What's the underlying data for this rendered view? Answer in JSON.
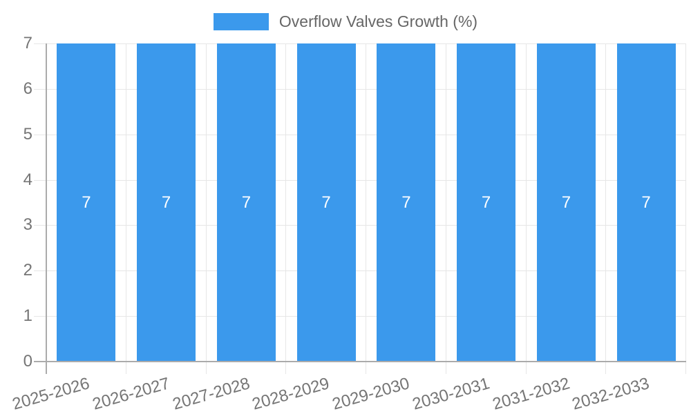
{
  "chart_data": {
    "type": "bar",
    "title": "Overflow Valves Growth (%)",
    "categories": [
      "2025-2026",
      "2026-2027",
      "2027-2028",
      "2028-2029",
      "2029-2030",
      "2030-2031",
      "2031-2032",
      "2032-2033"
    ],
    "series": [
      {
        "name": "Overflow Valves Growth (%)",
        "values": [
          7,
          7,
          7,
          7,
          7,
          7,
          7,
          7
        ]
      }
    ],
    "bar_value_labels": [
      "7",
      "7",
      "7",
      "7",
      "7",
      "7",
      "7",
      "7"
    ],
    "xlabel": "",
    "ylabel": "",
    "ylim": [
      0,
      7
    ],
    "yticks": [
      0,
      1,
      2,
      3,
      4,
      5,
      6,
      7
    ],
    "grid": true,
    "legend_position": "top",
    "x_label_rotation_deg": -16,
    "colors": {
      "bar": "#3b99ec",
      "bar_label": "#ffffff",
      "grid_line": "#e6e6e6",
      "axis_line": "#ababab",
      "tick_text": "#757575",
      "title_text": "#666666",
      "background": "#ffffff"
    }
  }
}
